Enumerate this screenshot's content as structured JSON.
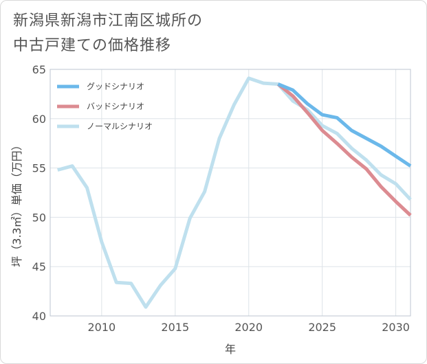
{
  "title": {
    "line1": "新潟県新潟市江南区城所の",
    "line2": "中古戸建ての価格推移"
  },
  "chart_data": {
    "type": "line",
    "xlabel": "年",
    "ylabel": "坪（3.3㎡）単価（万円）",
    "xlim": [
      2006.5,
      2031
    ],
    "ylim": [
      40,
      65
    ],
    "x_ticks": [
      2010,
      2015,
      2020,
      2025,
      2030
    ],
    "y_ticks": [
      40,
      45,
      50,
      55,
      60,
      65
    ],
    "grid": true,
    "legend_position": "top-left",
    "series": [
      {
        "name": "グッドシナリオ",
        "color": "#6bb8ea",
        "x": [
          2022,
          2023,
          2024,
          2025,
          2026,
          2027,
          2028,
          2029,
          2030,
          2031
        ],
        "values": [
          63.5,
          62.9,
          61.5,
          60.4,
          60.1,
          58.8,
          58.0,
          57.2,
          56.2,
          55.2
        ]
      },
      {
        "name": "バッドシナリオ",
        "color": "#dc8b91",
        "x": [
          2022,
          2023,
          2024,
          2025,
          2026,
          2027,
          2028,
          2029,
          2030,
          2031
        ],
        "values": [
          63.5,
          62.3,
          60.6,
          58.8,
          57.5,
          56.1,
          54.9,
          53.1,
          51.6,
          50.2
        ]
      },
      {
        "name": "ノーマルシナリオ",
        "color": "#bfe0ee",
        "x": [
          2007,
          2008,
          2009,
          2010,
          2011,
          2012,
          2013,
          2014,
          2015,
          2016,
          2017,
          2018,
          2019,
          2020,
          2021,
          2022,
          2023,
          2024,
          2025,
          2026,
          2027,
          2028,
          2029,
          2030,
          2031
        ],
        "values": [
          54.8,
          55.2,
          53.0,
          47.5,
          43.4,
          43.3,
          40.9,
          43.1,
          44.8,
          49.9,
          52.6,
          58.0,
          61.4,
          64.1,
          63.6,
          63.5,
          61.8,
          60.9,
          59.3,
          58.5,
          57.0,
          55.8,
          54.3,
          53.4,
          51.8
        ]
      }
    ]
  }
}
